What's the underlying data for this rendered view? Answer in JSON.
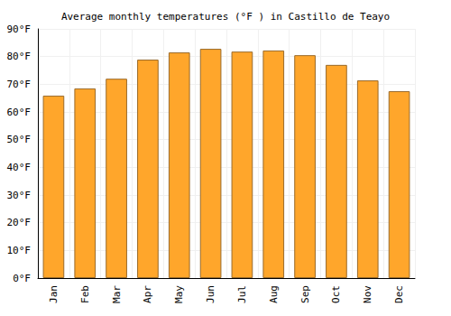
{
  "chart_data": {
    "type": "bar",
    "title": "Average monthly temperatures (°F ) in Castillo de Teayo",
    "categories": [
      "Jan",
      "Feb",
      "Mar",
      "Apr",
      "May",
      "Jun",
      "Jul",
      "Aug",
      "Sep",
      "Oct",
      "Nov",
      "Dec"
    ],
    "values": [
      65.9,
      68.5,
      72,
      78.9,
      81.5,
      82.8,
      81.8,
      82.2,
      80.5,
      77,
      71.4,
      67.5
    ],
    "color": "#ffa62b",
    "ylim": [
      0,
      90
    ],
    "yticks": [
      {
        "value": 0,
        "label": "0°F"
      },
      {
        "value": 10,
        "label": "10°F"
      },
      {
        "value": 20,
        "label": "20°F"
      },
      {
        "value": 30,
        "label": "30°F"
      },
      {
        "value": 40,
        "label": "40°F"
      },
      {
        "value": 50,
        "label": "50°F"
      },
      {
        "value": 60,
        "label": "60°F"
      },
      {
        "value": 70,
        "label": "70°F"
      },
      {
        "value": 80,
        "label": "80°F"
      },
      {
        "value": 90,
        "label": "90°F"
      }
    ],
    "grid": true
  }
}
